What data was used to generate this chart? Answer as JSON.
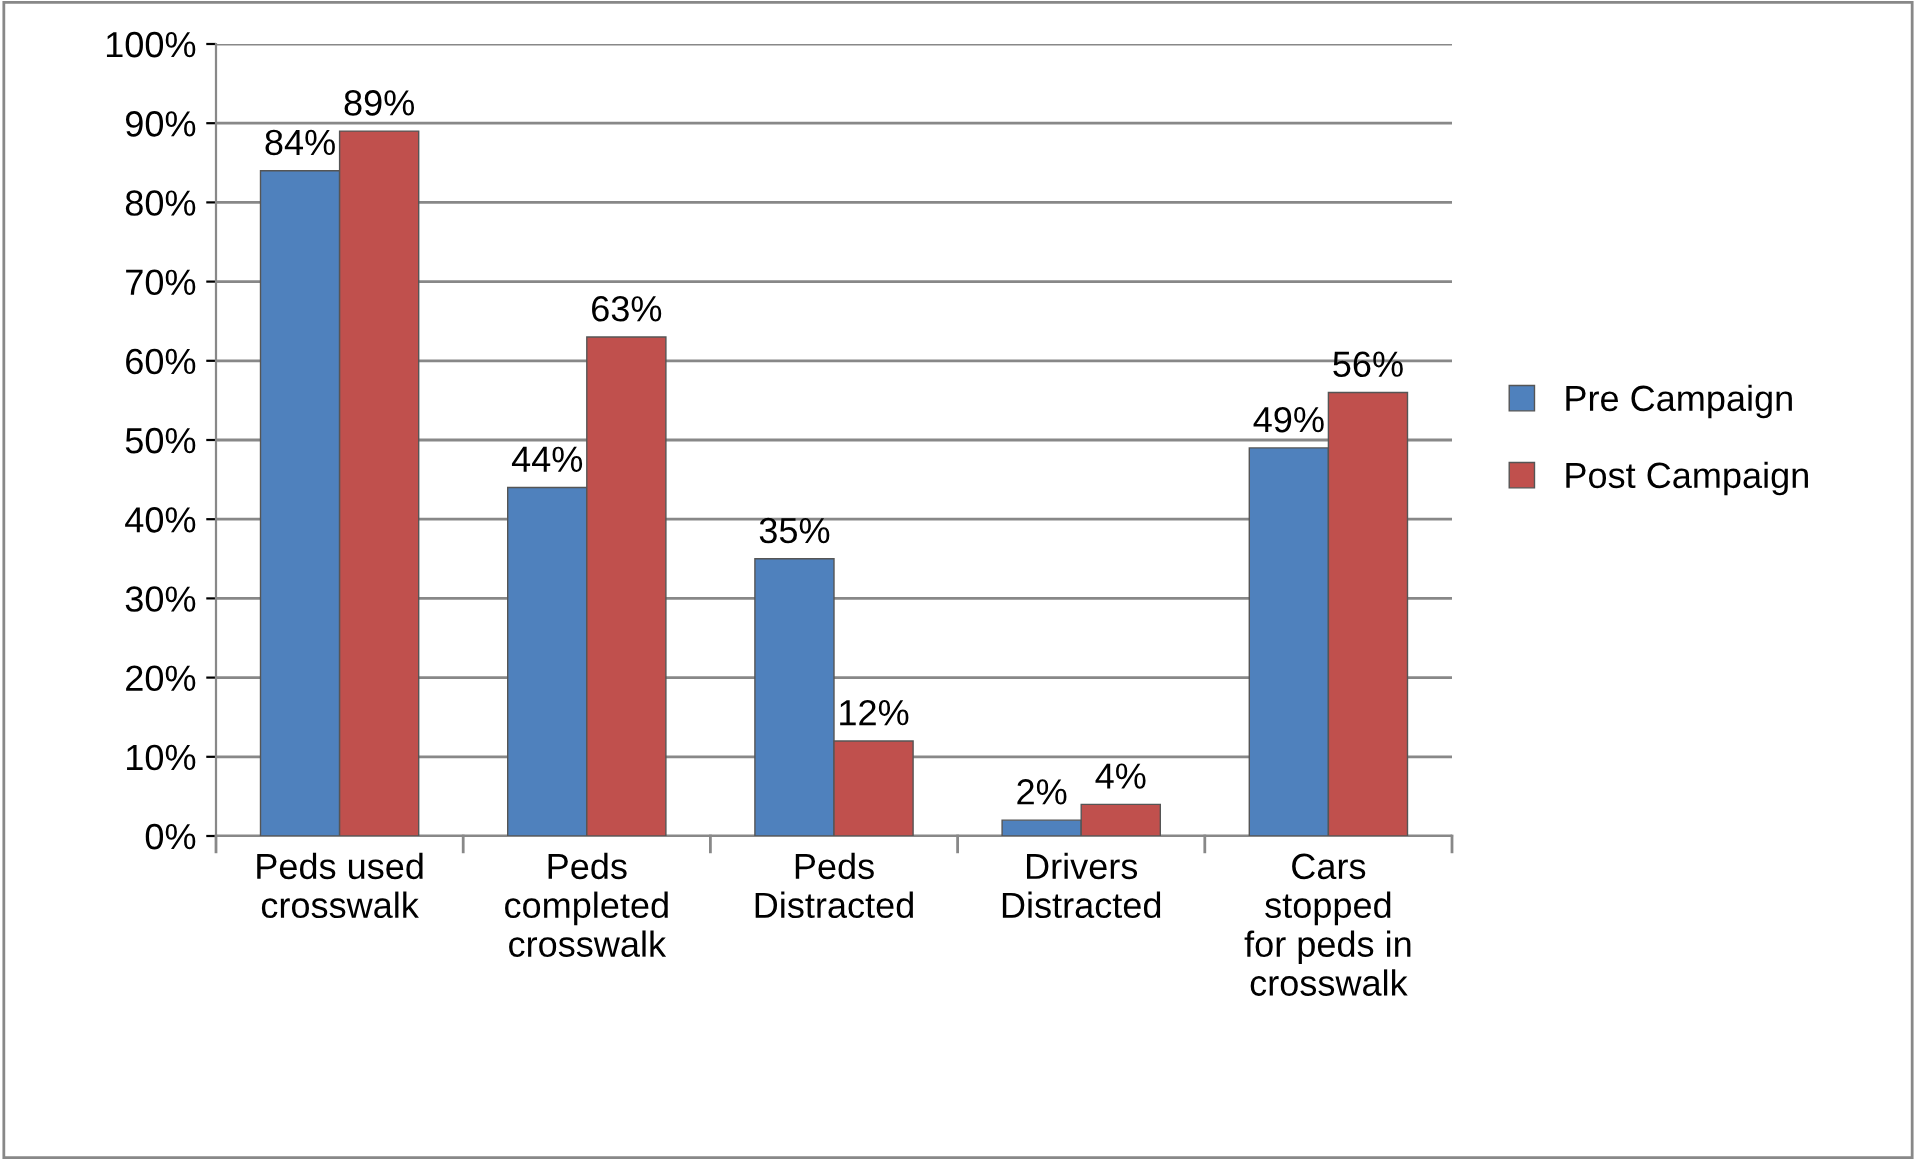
{
  "chart_data": {
    "type": "bar",
    "categories": [
      "Peds used\ncrosswalk",
      "Peds\ncompleted\ncrosswalk",
      "Peds\nDistracted",
      "Drivers\nDistracted",
      "Cars\nstopped\nfor peds in\ncrosswalk"
    ],
    "series": [
      {
        "name": "Pre Campaign",
        "color": "#4f81bd",
        "values": [
          84,
          44,
          35,
          2,
          49
        ],
        "value_labels": [
          "84%",
          "44%",
          "35%",
          "2%",
          "49%"
        ]
      },
      {
        "name": "Post Campaign",
        "color": "#c0504d",
        "values": [
          89,
          63,
          12,
          4,
          56
        ],
        "value_labels": [
          "89%",
          "63%",
          "12%",
          "4%",
          "56%"
        ]
      }
    ],
    "ylim": [
      0,
      100
    ],
    "yticks": [
      {
        "value": 0,
        "label": "0%"
      },
      {
        "value": 10,
        "label": "10%"
      },
      {
        "value": 20,
        "label": "20%"
      },
      {
        "value": 30,
        "label": "30%"
      },
      {
        "value": 40,
        "label": "40%"
      },
      {
        "value": 50,
        "label": "50%"
      },
      {
        "value": 60,
        "label": "60%"
      },
      {
        "value": 70,
        "label": "70%"
      },
      {
        "value": 80,
        "label": "80%"
      },
      {
        "value": 90,
        "label": "90%"
      },
      {
        "value": 100,
        "label": "100%"
      }
    ],
    "grid": "y",
    "legend": "right"
  }
}
